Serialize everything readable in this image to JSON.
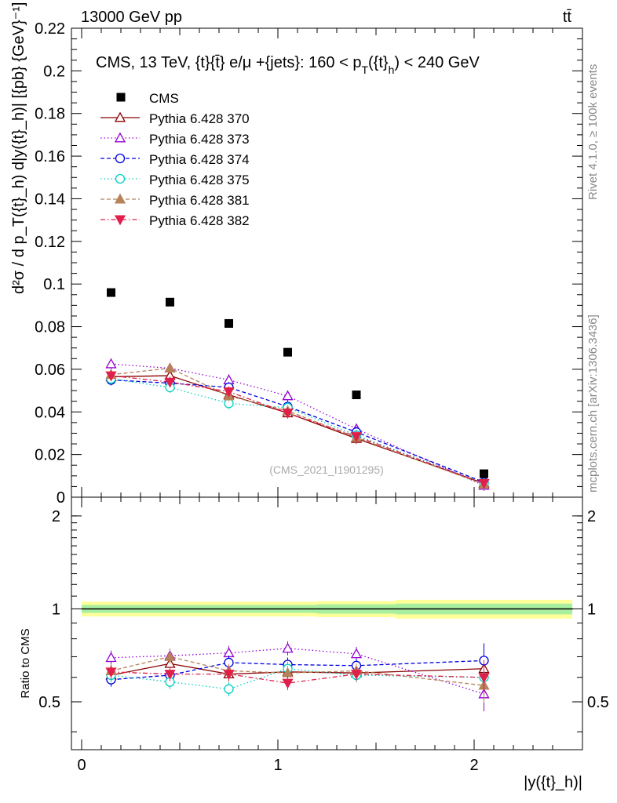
{
  "header": {
    "energy_label": "13000 GeV pp",
    "process_label": "tt̄"
  },
  "side_labels": {
    "rivet": "Rivet 4.1.0, ≥ 100k events",
    "mcplots": "mcplots.cern.ch [arXiv:1306.3436]"
  },
  "chart_data": {
    "type": "scatter",
    "title": "CMS, 13 TeV, {t}{t̄} e/μ +{jets}: 160 <  p_T({t}_h) < 240 GeV",
    "watermark": "(CMS_2021_I1901295)",
    "xlabel": "|y({t}_h)|",
    "ylabel": "d²σ / d p_T({t}_h) d|y({t}_h)| [{pb} {GeV}⁻¹]",
    "ratio_ylabel": "Ratio to CMS",
    "xlim": [
      -0.08,
      2.6
    ],
    "ylim": [
      0,
      0.22
    ],
    "ratio_ylim": [
      0.35,
      2.3
    ],
    "x_ticks": [
      "0",
      "1",
      "2"
    ],
    "y_ticks": [
      "0",
      "0.02",
      "0.04",
      "0.06",
      "0.08",
      "0.1",
      "0.12",
      "0.14",
      "0.16",
      "0.18",
      "0.2",
      "0.22"
    ],
    "ratio_ticks": [
      "0.5",
      "1",
      "2"
    ],
    "x": [
      0.15,
      0.45,
      0.75,
      1.05,
      1.4,
      2.05
    ],
    "bin_edges": [
      0,
      0.3,
      0.6,
      0.9,
      1.2,
      1.6,
      2.5
    ],
    "reference": {
      "name": "CMS",
      "values": [
        0.096,
        0.0915,
        0.0815,
        0.068,
        0.048,
        0.011
      ],
      "color": "#000000"
    },
    "band": {
      "inner_rel": [
        0.03,
        0.03,
        0.03,
        0.03,
        0.035,
        0.04
      ],
      "outer_rel": [
        0.055,
        0.055,
        0.055,
        0.055,
        0.06,
        0.07
      ],
      "inner_color": "#a8f0a0",
      "outer_color": "#ffff99"
    },
    "series": [
      {
        "name": "Pythia 6.428 370",
        "color": "#8b0000",
        "marker": "triangle-open",
        "line": "solid",
        "values": [
          0.0565,
          0.057,
          0.048,
          0.0395,
          0.0275,
          0.0065
        ],
        "ratio": [
          0.61,
          0.665,
          0.615,
          0.625,
          0.62,
          0.64
        ]
      },
      {
        "name": "Pythia 6.428 373",
        "color": "#9400d3",
        "marker": "triangle-open",
        "line": "dotted",
        "values": [
          0.0625,
          0.0605,
          0.055,
          0.0475,
          0.032,
          0.0055
        ],
        "ratio": [
          0.695,
          0.705,
          0.72,
          0.745,
          0.715,
          0.53
        ]
      },
      {
        "name": "Pythia 6.428 374",
        "color": "#0000dd",
        "marker": "circle-open",
        "line": "dashed",
        "values": [
          0.055,
          0.0535,
          0.0515,
          0.0425,
          0.0305,
          0.007
        ],
        "ratio": [
          0.59,
          0.61,
          0.67,
          0.66,
          0.655,
          0.68
        ]
      },
      {
        "name": "Pythia 6.428 375",
        "color": "#00d0c0",
        "marker": "circle-open",
        "line": "dotted",
        "values": [
          0.0555,
          0.0515,
          0.044,
          0.042,
          0.029,
          0.0065
        ],
        "ratio": [
          0.61,
          0.58,
          0.55,
          0.64,
          0.61,
          0.6
        ]
      },
      {
        "name": "Pythia 6.428 381",
        "color": "#b5825a",
        "marker": "triangle-filled",
        "line": "dashed",
        "values": [
          0.0575,
          0.0605,
          0.0475,
          0.0405,
          0.028,
          0.006
        ],
        "ratio": [
          0.63,
          0.7,
          0.63,
          0.62,
          0.63,
          0.565
        ]
      },
      {
        "name": "Pythia 6.428 382",
        "color": "#e0204a",
        "marker": "triangle-down-filled",
        "line": "dashdot",
        "values": [
          0.057,
          0.054,
          0.0495,
          0.0395,
          0.0285,
          0.0065
        ],
        "ratio": [
          0.625,
          0.615,
          0.615,
          0.575,
          0.615,
          0.6
        ]
      }
    ]
  }
}
